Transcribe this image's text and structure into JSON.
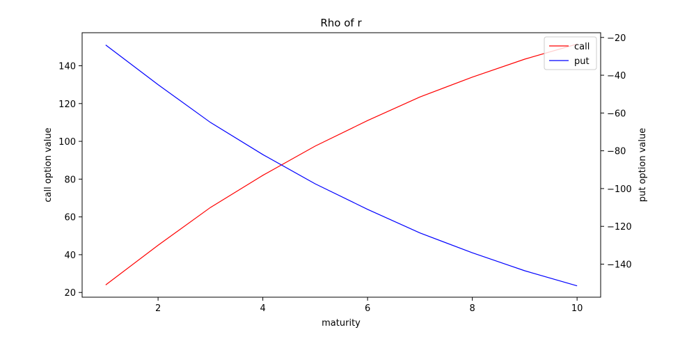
{
  "chart_data": {
    "type": "line",
    "title": "Rho of r",
    "xlabel": "maturity",
    "ylabel_left": "call option value",
    "ylabel_right": "put option value",
    "xlim": [
      0.55,
      10.45
    ],
    "ylim_left": [
      17.5,
      157.5
    ],
    "ylim_right": [
      -157.5,
      -17.5
    ],
    "x_ticks": [
      2,
      4,
      6,
      8,
      10
    ],
    "y_ticks_left": [
      20,
      40,
      60,
      80,
      100,
      120,
      140
    ],
    "y_ticks_right": [
      -20,
      -40,
      -60,
      -80,
      -100,
      -120,
      -140
    ],
    "grid": false,
    "legend_position": "top-right",
    "x": [
      1,
      2,
      3,
      4,
      5,
      6,
      7,
      8,
      9,
      10
    ],
    "series": [
      {
        "name": "call",
        "axis": "left",
        "color": "#ff0000",
        "values": [
          24.0,
          45.0,
          65.0,
          82.0,
          97.5,
          111.0,
          123.5,
          134.0,
          143.5,
          151.5
        ]
      },
      {
        "name": "put",
        "axis": "right",
        "color": "#0000ff",
        "values": [
          -24.0,
          -45.0,
          -65.0,
          -82.0,
          -97.5,
          -111.0,
          -123.5,
          -134.0,
          -143.5,
          -151.5
        ]
      }
    ]
  }
}
